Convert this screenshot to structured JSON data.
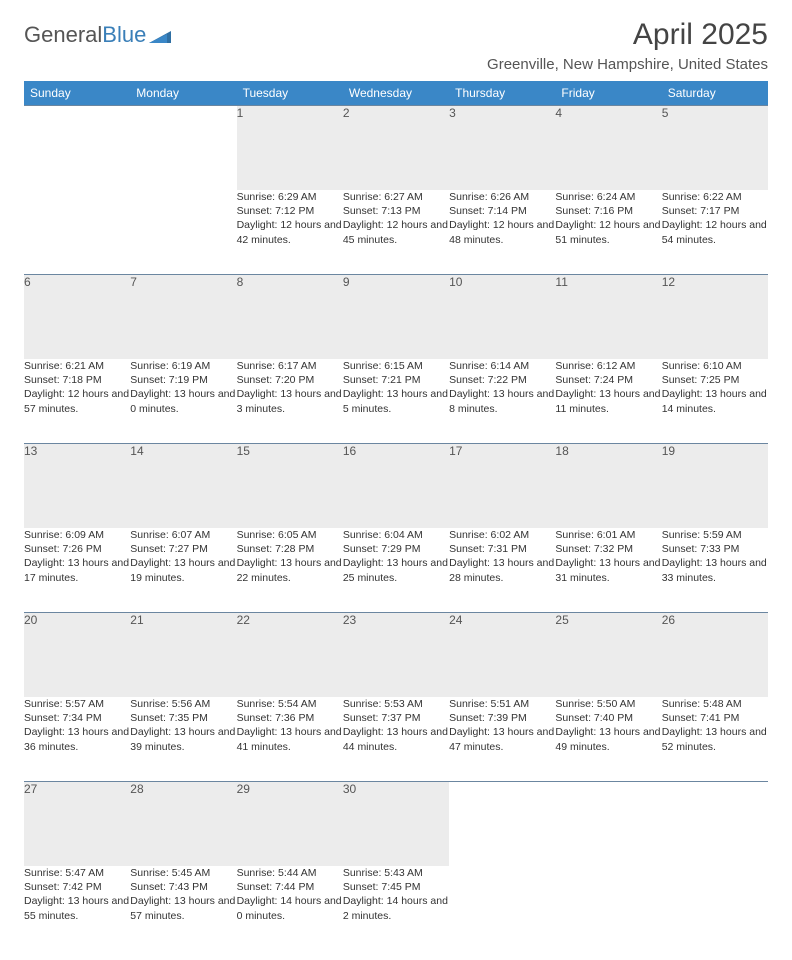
{
  "logo": {
    "text1": "General",
    "text2": "Blue"
  },
  "title": "April 2025",
  "location": "Greenville, New Hampshire, United States",
  "colors": {
    "header_bg": "#3a87c7",
    "header_text": "#ffffff",
    "daynum_bg": "#ececec",
    "border": "#6b86a0",
    "logo_blue": "#3a7fb8"
  },
  "weekdays": [
    "Sunday",
    "Monday",
    "Tuesday",
    "Wednesday",
    "Thursday",
    "Friday",
    "Saturday"
  ],
  "weeks": [
    [
      null,
      null,
      {
        "num": "1",
        "sunrise": "Sunrise: 6:29 AM",
        "sunset": "Sunset: 7:12 PM",
        "daylight": "Daylight: 12 hours and 42 minutes."
      },
      {
        "num": "2",
        "sunrise": "Sunrise: 6:27 AM",
        "sunset": "Sunset: 7:13 PM",
        "daylight": "Daylight: 12 hours and 45 minutes."
      },
      {
        "num": "3",
        "sunrise": "Sunrise: 6:26 AM",
        "sunset": "Sunset: 7:14 PM",
        "daylight": "Daylight: 12 hours and 48 minutes."
      },
      {
        "num": "4",
        "sunrise": "Sunrise: 6:24 AM",
        "sunset": "Sunset: 7:16 PM",
        "daylight": "Daylight: 12 hours and 51 minutes."
      },
      {
        "num": "5",
        "sunrise": "Sunrise: 6:22 AM",
        "sunset": "Sunset: 7:17 PM",
        "daylight": "Daylight: 12 hours and 54 minutes."
      }
    ],
    [
      {
        "num": "6",
        "sunrise": "Sunrise: 6:21 AM",
        "sunset": "Sunset: 7:18 PM",
        "daylight": "Daylight: 12 hours and 57 minutes."
      },
      {
        "num": "7",
        "sunrise": "Sunrise: 6:19 AM",
        "sunset": "Sunset: 7:19 PM",
        "daylight": "Daylight: 13 hours and 0 minutes."
      },
      {
        "num": "8",
        "sunrise": "Sunrise: 6:17 AM",
        "sunset": "Sunset: 7:20 PM",
        "daylight": "Daylight: 13 hours and 3 minutes."
      },
      {
        "num": "9",
        "sunrise": "Sunrise: 6:15 AM",
        "sunset": "Sunset: 7:21 PM",
        "daylight": "Daylight: 13 hours and 5 minutes."
      },
      {
        "num": "10",
        "sunrise": "Sunrise: 6:14 AM",
        "sunset": "Sunset: 7:22 PM",
        "daylight": "Daylight: 13 hours and 8 minutes."
      },
      {
        "num": "11",
        "sunrise": "Sunrise: 6:12 AM",
        "sunset": "Sunset: 7:24 PM",
        "daylight": "Daylight: 13 hours and 11 minutes."
      },
      {
        "num": "12",
        "sunrise": "Sunrise: 6:10 AM",
        "sunset": "Sunset: 7:25 PM",
        "daylight": "Daylight: 13 hours and 14 minutes."
      }
    ],
    [
      {
        "num": "13",
        "sunrise": "Sunrise: 6:09 AM",
        "sunset": "Sunset: 7:26 PM",
        "daylight": "Daylight: 13 hours and 17 minutes."
      },
      {
        "num": "14",
        "sunrise": "Sunrise: 6:07 AM",
        "sunset": "Sunset: 7:27 PM",
        "daylight": "Daylight: 13 hours and 19 minutes."
      },
      {
        "num": "15",
        "sunrise": "Sunrise: 6:05 AM",
        "sunset": "Sunset: 7:28 PM",
        "daylight": "Daylight: 13 hours and 22 minutes."
      },
      {
        "num": "16",
        "sunrise": "Sunrise: 6:04 AM",
        "sunset": "Sunset: 7:29 PM",
        "daylight": "Daylight: 13 hours and 25 minutes."
      },
      {
        "num": "17",
        "sunrise": "Sunrise: 6:02 AM",
        "sunset": "Sunset: 7:31 PM",
        "daylight": "Daylight: 13 hours and 28 minutes."
      },
      {
        "num": "18",
        "sunrise": "Sunrise: 6:01 AM",
        "sunset": "Sunset: 7:32 PM",
        "daylight": "Daylight: 13 hours and 31 minutes."
      },
      {
        "num": "19",
        "sunrise": "Sunrise: 5:59 AM",
        "sunset": "Sunset: 7:33 PM",
        "daylight": "Daylight: 13 hours and 33 minutes."
      }
    ],
    [
      {
        "num": "20",
        "sunrise": "Sunrise: 5:57 AM",
        "sunset": "Sunset: 7:34 PM",
        "daylight": "Daylight: 13 hours and 36 minutes."
      },
      {
        "num": "21",
        "sunrise": "Sunrise: 5:56 AM",
        "sunset": "Sunset: 7:35 PM",
        "daylight": "Daylight: 13 hours and 39 minutes."
      },
      {
        "num": "22",
        "sunrise": "Sunrise: 5:54 AM",
        "sunset": "Sunset: 7:36 PM",
        "daylight": "Daylight: 13 hours and 41 minutes."
      },
      {
        "num": "23",
        "sunrise": "Sunrise: 5:53 AM",
        "sunset": "Sunset: 7:37 PM",
        "daylight": "Daylight: 13 hours and 44 minutes."
      },
      {
        "num": "24",
        "sunrise": "Sunrise: 5:51 AM",
        "sunset": "Sunset: 7:39 PM",
        "daylight": "Daylight: 13 hours and 47 minutes."
      },
      {
        "num": "25",
        "sunrise": "Sunrise: 5:50 AM",
        "sunset": "Sunset: 7:40 PM",
        "daylight": "Daylight: 13 hours and 49 minutes."
      },
      {
        "num": "26",
        "sunrise": "Sunrise: 5:48 AM",
        "sunset": "Sunset: 7:41 PM",
        "daylight": "Daylight: 13 hours and 52 minutes."
      }
    ],
    [
      {
        "num": "27",
        "sunrise": "Sunrise: 5:47 AM",
        "sunset": "Sunset: 7:42 PM",
        "daylight": "Daylight: 13 hours and 55 minutes."
      },
      {
        "num": "28",
        "sunrise": "Sunrise: 5:45 AM",
        "sunset": "Sunset: 7:43 PM",
        "daylight": "Daylight: 13 hours and 57 minutes."
      },
      {
        "num": "29",
        "sunrise": "Sunrise: 5:44 AM",
        "sunset": "Sunset: 7:44 PM",
        "daylight": "Daylight: 14 hours and 0 minutes."
      },
      {
        "num": "30",
        "sunrise": "Sunrise: 5:43 AM",
        "sunset": "Sunset: 7:45 PM",
        "daylight": "Daylight: 14 hours and 2 minutes."
      },
      null,
      null,
      null
    ]
  ]
}
